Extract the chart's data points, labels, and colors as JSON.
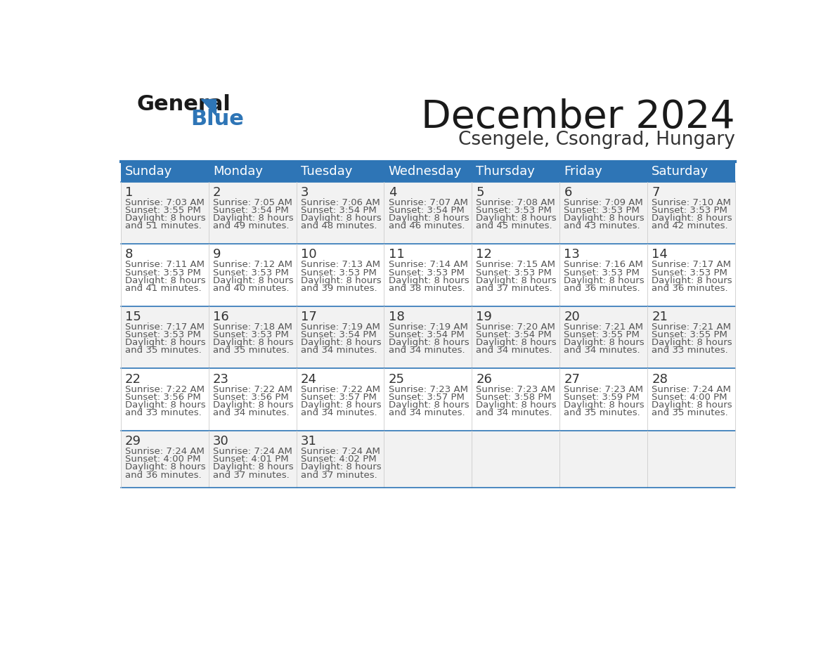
{
  "title": "December 2024",
  "subtitle": "Csengele, Csongrad, Hungary",
  "days_of_week": [
    "Sunday",
    "Monday",
    "Tuesday",
    "Wednesday",
    "Thursday",
    "Friday",
    "Saturday"
  ],
  "header_bg": "#2E75B6",
  "header_text": "#FFFFFF",
  "cell_bg_odd": "#F2F2F2",
  "cell_bg_even": "#FFFFFF",
  "cell_border": "#2E75B6",
  "day_num_color": "#333333",
  "info_text_color": "#555555",
  "title_color": "#1a1a1a",
  "subtitle_color": "#333333",
  "calendar_data": [
    [
      {
        "day": 1,
        "sunrise": "7:03 AM",
        "sunset": "3:55 PM",
        "daylight": "51 minutes."
      },
      {
        "day": 2,
        "sunrise": "7:05 AM",
        "sunset": "3:54 PM",
        "daylight": "49 minutes."
      },
      {
        "day": 3,
        "sunrise": "7:06 AM",
        "sunset": "3:54 PM",
        "daylight": "48 minutes."
      },
      {
        "day": 4,
        "sunrise": "7:07 AM",
        "sunset": "3:54 PM",
        "daylight": "46 minutes."
      },
      {
        "day": 5,
        "sunrise": "7:08 AM",
        "sunset": "3:53 PM",
        "daylight": "45 minutes."
      },
      {
        "day": 6,
        "sunrise": "7:09 AM",
        "sunset": "3:53 PM",
        "daylight": "43 minutes."
      },
      {
        "day": 7,
        "sunrise": "7:10 AM",
        "sunset": "3:53 PM",
        "daylight": "42 minutes."
      }
    ],
    [
      {
        "day": 8,
        "sunrise": "7:11 AM",
        "sunset": "3:53 PM",
        "daylight": "41 minutes."
      },
      {
        "day": 9,
        "sunrise": "7:12 AM",
        "sunset": "3:53 PM",
        "daylight": "40 minutes."
      },
      {
        "day": 10,
        "sunrise": "7:13 AM",
        "sunset": "3:53 PM",
        "daylight": "39 minutes."
      },
      {
        "day": 11,
        "sunrise": "7:14 AM",
        "sunset": "3:53 PM",
        "daylight": "38 minutes."
      },
      {
        "day": 12,
        "sunrise": "7:15 AM",
        "sunset": "3:53 PM",
        "daylight": "37 minutes."
      },
      {
        "day": 13,
        "sunrise": "7:16 AM",
        "sunset": "3:53 PM",
        "daylight": "36 minutes."
      },
      {
        "day": 14,
        "sunrise": "7:17 AM",
        "sunset": "3:53 PM",
        "daylight": "36 minutes."
      }
    ],
    [
      {
        "day": 15,
        "sunrise": "7:17 AM",
        "sunset": "3:53 PM",
        "daylight": "35 minutes."
      },
      {
        "day": 16,
        "sunrise": "7:18 AM",
        "sunset": "3:53 PM",
        "daylight": "35 minutes."
      },
      {
        "day": 17,
        "sunrise": "7:19 AM",
        "sunset": "3:54 PM",
        "daylight": "34 minutes."
      },
      {
        "day": 18,
        "sunrise": "7:19 AM",
        "sunset": "3:54 PM",
        "daylight": "34 minutes."
      },
      {
        "day": 19,
        "sunrise": "7:20 AM",
        "sunset": "3:54 PM",
        "daylight": "34 minutes."
      },
      {
        "day": 20,
        "sunrise": "7:21 AM",
        "sunset": "3:55 PM",
        "daylight": "34 minutes."
      },
      {
        "day": 21,
        "sunrise": "7:21 AM",
        "sunset": "3:55 PM",
        "daylight": "33 minutes."
      }
    ],
    [
      {
        "day": 22,
        "sunrise": "7:22 AM",
        "sunset": "3:56 PM",
        "daylight": "33 minutes."
      },
      {
        "day": 23,
        "sunrise": "7:22 AM",
        "sunset": "3:56 PM",
        "daylight": "34 minutes."
      },
      {
        "day": 24,
        "sunrise": "7:22 AM",
        "sunset": "3:57 PM",
        "daylight": "34 minutes."
      },
      {
        "day": 25,
        "sunrise": "7:23 AM",
        "sunset": "3:57 PM",
        "daylight": "34 minutes."
      },
      {
        "day": 26,
        "sunrise": "7:23 AM",
        "sunset": "3:58 PM",
        "daylight": "34 minutes."
      },
      {
        "day": 27,
        "sunrise": "7:23 AM",
        "sunset": "3:59 PM",
        "daylight": "35 minutes."
      },
      {
        "day": 28,
        "sunrise": "7:24 AM",
        "sunset": "4:00 PM",
        "daylight": "35 minutes."
      }
    ],
    [
      {
        "day": 29,
        "sunrise": "7:24 AM",
        "sunset": "4:00 PM",
        "daylight": "36 minutes."
      },
      {
        "day": 30,
        "sunrise": "7:24 AM",
        "sunset": "4:01 PM",
        "daylight": "37 minutes."
      },
      {
        "day": 31,
        "sunrise": "7:24 AM",
        "sunset": "4:02 PM",
        "daylight": "37 minutes."
      },
      null,
      null,
      null,
      null
    ]
  ]
}
